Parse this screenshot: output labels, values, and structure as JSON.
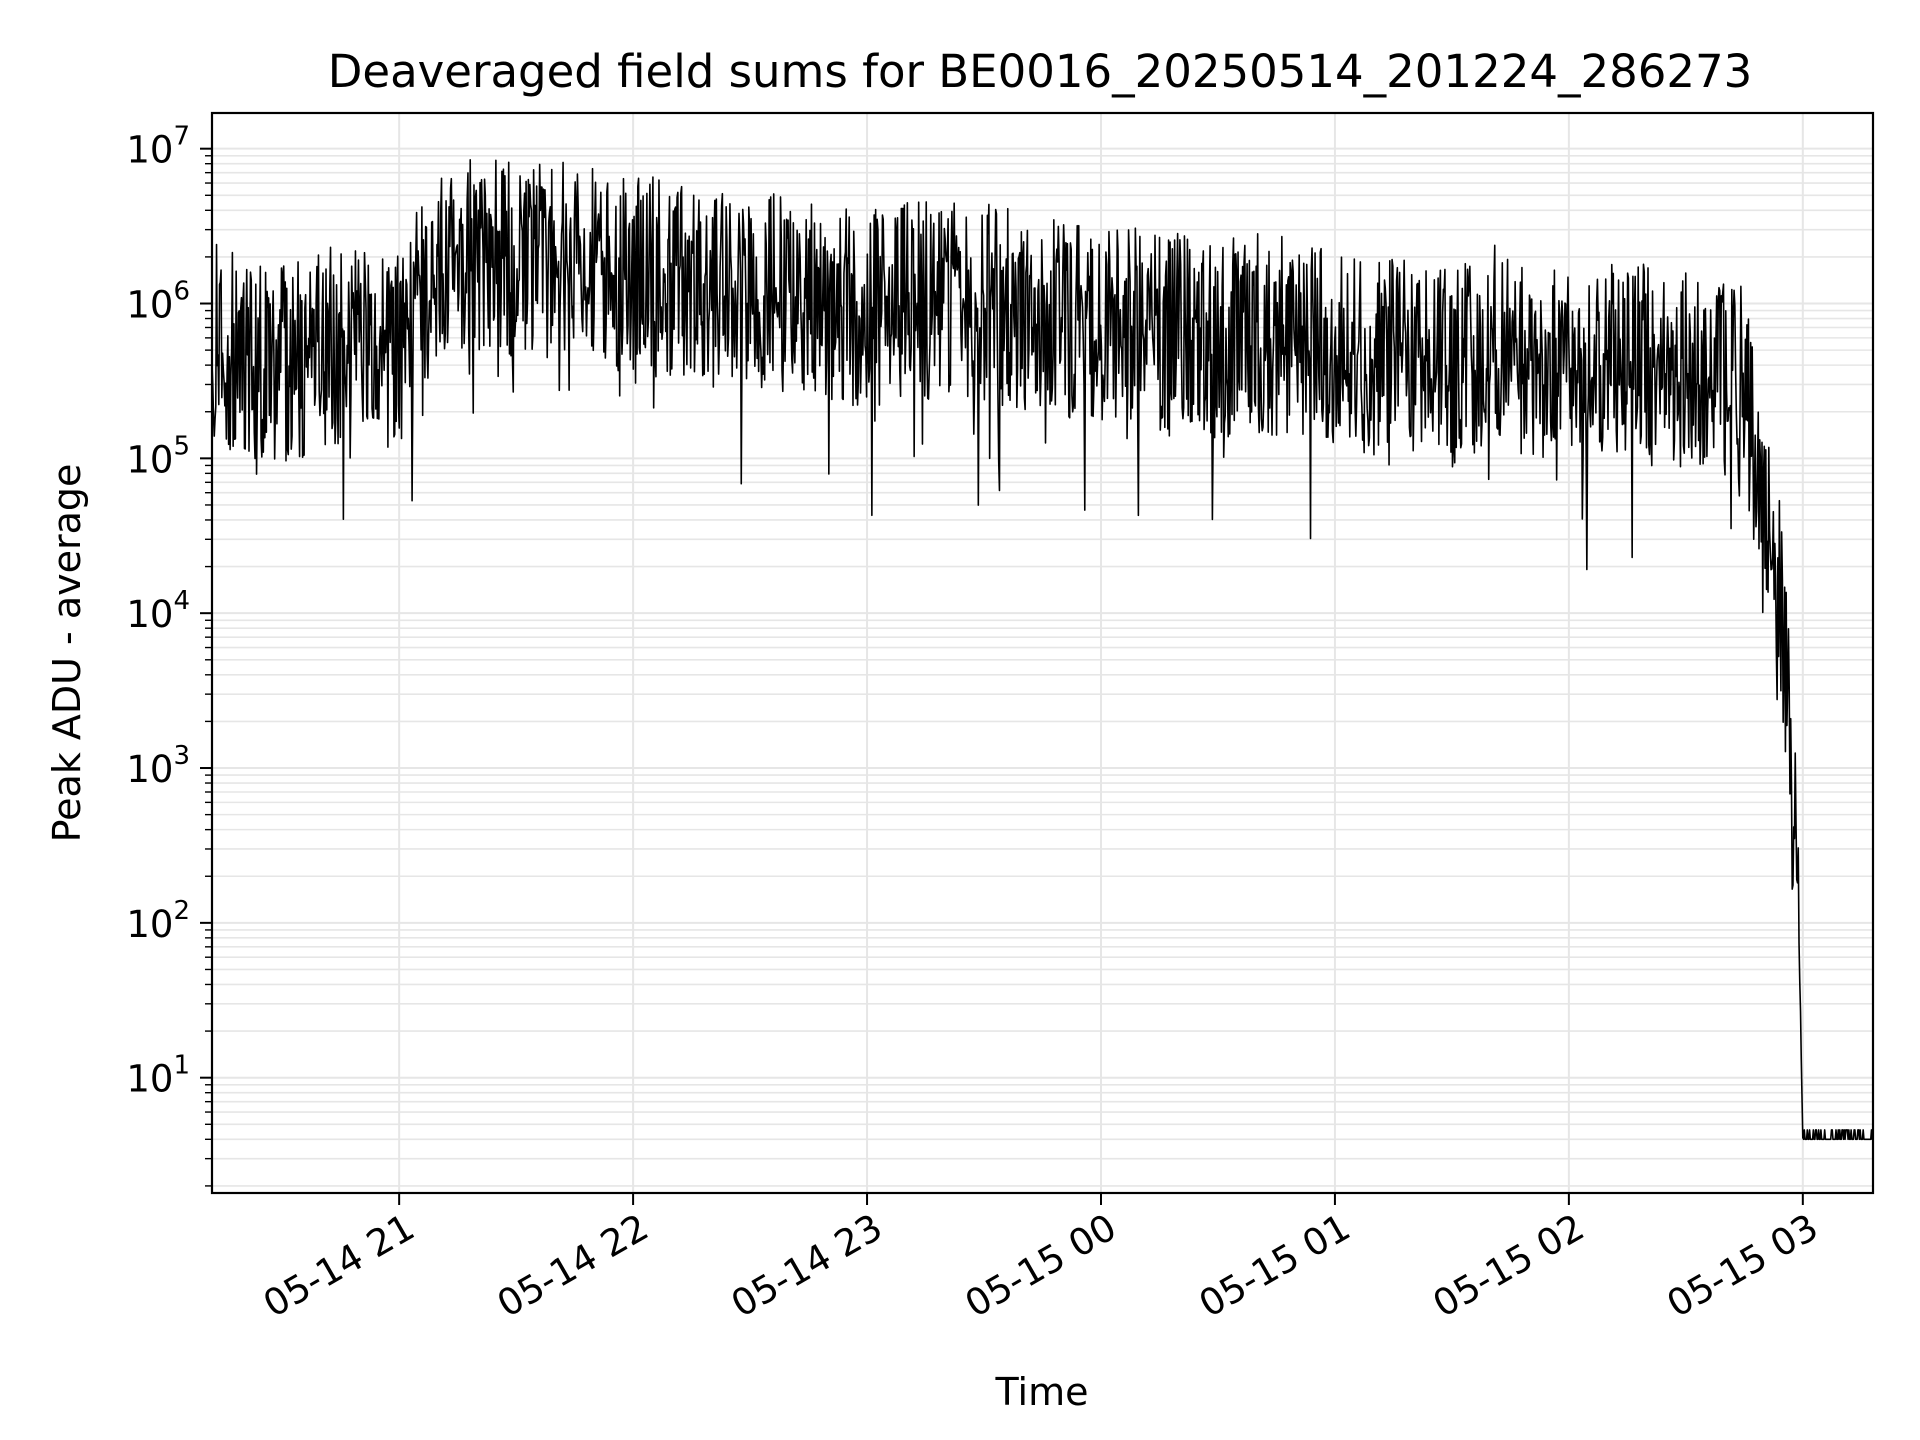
{
  "chart_data": {
    "type": "line",
    "title": "Deaveraged field sums for BE0016_20250514_201224_286273",
    "xlabel": "Time",
    "ylabel": "Peak ADU - average",
    "yscale": "log",
    "ylim": [
      1.8,
      17000000
    ],
    "xlim": [
      "2025-05-14 20:12",
      "2025-05-15 03:18"
    ],
    "grid": true,
    "line_color": "#000000",
    "grid_color": "#e6e6e6",
    "x_ticks": [
      {
        "value": "2025-05-14 21:00",
        "label": "05-14 21"
      },
      {
        "value": "2025-05-14 22:00",
        "label": "05-14 22"
      },
      {
        "value": "2025-05-14 23:00",
        "label": "05-14 23"
      },
      {
        "value": "2025-05-15 00:00",
        "label": "05-15 00"
      },
      {
        "value": "2025-05-15 01:00",
        "label": "05-15 01"
      },
      {
        "value": "2025-05-15 02:00",
        "label": "05-15 02"
      },
      {
        "value": "2025-05-15 03:00",
        "label": "05-15 03"
      }
    ],
    "y_ticks": [
      {
        "value": 10,
        "base": "10",
        "exp": "1"
      },
      {
        "value": 100,
        "base": "10",
        "exp": "2"
      },
      {
        "value": 1000,
        "base": "10",
        "exp": "3"
      },
      {
        "value": 10000,
        "base": "10",
        "exp": "4"
      },
      {
        "value": 100000,
        "base": "10",
        "exp": "5"
      },
      {
        "value": 1000000,
        "base": "10",
        "exp": "6"
      },
      {
        "value": 10000000,
        "base": "10",
        "exp": "7"
      }
    ],
    "series": [
      {
        "x": [
          "2025-05-14 20:12",
          "2025-05-14 20:20",
          "2025-05-14 20:30",
          "2025-05-14 20:40",
          "2025-05-14 20:50",
          "2025-05-14 21:00",
          "2025-05-14 21:10",
          "2025-05-14 21:20",
          "2025-05-14 21:30",
          "2025-05-14 21:40",
          "2025-05-14 21:50",
          "2025-05-14 22:00",
          "2025-05-14 22:10",
          "2025-05-14 22:20",
          "2025-05-14 22:30",
          "2025-05-14 22:40",
          "2025-05-14 22:50",
          "2025-05-14 23:00",
          "2025-05-14 23:10",
          "2025-05-14 23:20",
          "2025-05-14 23:30",
          "2025-05-14 23:40",
          "2025-05-14 23:50",
          "2025-05-15 00:00",
          "2025-05-15 00:10",
          "2025-05-15 00:20",
          "2025-05-15 00:30",
          "2025-05-15 00:40",
          "2025-05-15 00:50",
          "2025-05-15 01:00",
          "2025-05-15 01:10",
          "2025-05-15 01:20",
          "2025-05-15 01:30",
          "2025-05-15 01:40",
          "2025-05-15 01:50",
          "2025-05-15 02:00",
          "2025-05-15 02:10",
          "2025-05-15 02:20",
          "2025-05-15 02:30",
          "2025-05-15 02:40",
          "2025-05-15 02:45",
          "2025-05-15 02:50",
          "2025-05-15 02:54",
          "2025-05-15 02:57",
          "2025-05-15 02:59",
          "2025-05-15 03:00",
          "2025-05-15 03:05",
          "2025-05-15 03:10",
          "2025-05-15 03:18"
        ],
        "y": [
          600000,
          450000,
          400000,
          500000,
          600000,
          500000,
          1800000,
          2000000,
          1800000,
          1900000,
          1700000,
          1600000,
          1400000,
          1300000,
          1100000,
          1200000,
          1000000,
          900000,
          1000000,
          1100000,
          1000000,
          900000,
          800000,
          750000,
          700000,
          650000,
          600000,
          650000,
          600000,
          550000,
          450000,
          500000,
          350000,
          550000,
          450000,
          400000,
          450000,
          400000,
          380000,
          350000,
          300000,
          40000,
          12000,
          1500,
          80,
          4,
          4,
          4,
          4
        ]
      }
    ]
  }
}
